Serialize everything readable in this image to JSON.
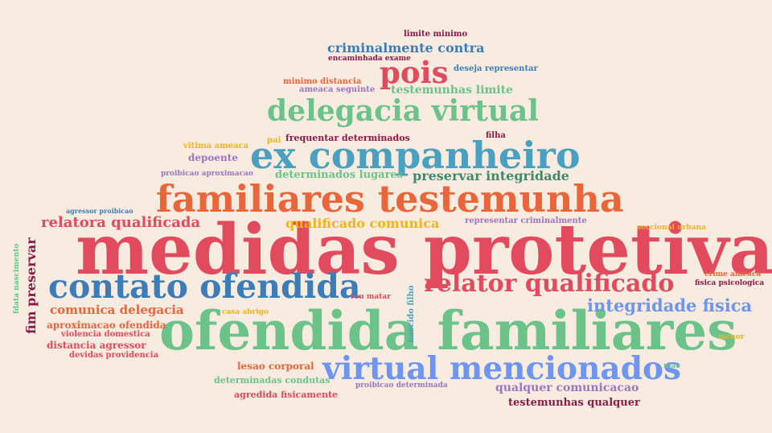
{
  "colors": {
    "background": "#f8ebdf",
    "red": "#e24a5e",
    "green": "#6cc38a",
    "orange": "#e9663a",
    "teal": "#4aa0c0",
    "blue": "#3c7db8",
    "periwinkle": "#6e95f2",
    "gold": "#f0b41e",
    "maroon": "#8a1a4a",
    "purple": "#9a76c0",
    "darkgreen": "#3f8a6c"
  },
  "words": [
    {
      "id": "w01",
      "text": "medidas protetiva",
      "color": "#e24a5e"
    },
    {
      "id": "w02",
      "text": "ofendida familiares",
      "color": "#6cc38a"
    },
    {
      "id": "w03",
      "text": "familiares testemunha",
      "color": "#e9663a"
    },
    {
      "id": "w04",
      "text": "ex companheiro",
      "color": "#4aa0c0"
    },
    {
      "id": "w05",
      "text": "contato ofendida",
      "color": "#3c7db8"
    },
    {
      "id": "w06",
      "text": "virtual mencionados",
      "color": "#6e95f2"
    },
    {
      "id": "w07",
      "text": "delegacia virtual",
      "color": "#6cc38a"
    },
    {
      "id": "w08",
      "text": "relator qualificado",
      "color": "#e24a5e"
    },
    {
      "id": "w09",
      "text": "pois",
      "color": "#e24a5e"
    },
    {
      "id": "w10",
      "text": "integridade fisica",
      "color": "#6e95f2"
    },
    {
      "id": "w11",
      "text": "relatora qualificada",
      "color": "#e24a5e"
    },
    {
      "id": "w12",
      "text": "criminalmente contra",
      "color": "#3c7db8"
    },
    {
      "id": "w13",
      "text": "preservar integridade",
      "color": "#3f8a6c"
    },
    {
      "id": "w14",
      "text": "qualificado comunica",
      "color": "#f0b41e"
    },
    {
      "id": "w15",
      "text": "comunica delegacia",
      "color": "#e9663a"
    },
    {
      "id": "w16",
      "text": "fim preservar",
      "color": "#8a1a4a"
    },
    {
      "id": "w17",
      "text": "testemunhas limite",
      "color": "#6cc38a"
    },
    {
      "id": "w18",
      "text": "determinados lugares",
      "color": "#6cc38a"
    },
    {
      "id": "w19",
      "text": "qualquer comunicacao",
      "color": "#9a76c0"
    },
    {
      "id": "w20",
      "text": "testemunhas qualquer",
      "color": "#8a1a4a"
    },
    {
      "id": "w21",
      "text": "frequentar determinados",
      "color": "#8a1a4a"
    },
    {
      "id": "w22",
      "text": "aproximacao ofendida",
      "color": "#e9663a"
    },
    {
      "id": "w23",
      "text": "distancia agressor",
      "color": "#e24a5e"
    },
    {
      "id": "w24",
      "text": "depoente",
      "color": "#9a76c0"
    },
    {
      "id": "w25",
      "text": "lesao corporal",
      "color": "#e9663a"
    },
    {
      "id": "w26",
      "text": "determinadas condutas",
      "color": "#6cc38a"
    },
    {
      "id": "w27",
      "text": "agredida fisicamente",
      "color": "#e24a5e"
    },
    {
      "id": "w28",
      "text": "encaminhada exame",
      "color": "#8a1a4a"
    },
    {
      "id": "w29",
      "text": "limite minimo",
      "color": "#8a1a4a"
    },
    {
      "id": "w30",
      "text": "minimo distancia",
      "color": "#e9663a"
    },
    {
      "id": "w31",
      "text": "ameaca seguinte",
      "color": "#9a76c0"
    },
    {
      "id": "w32",
      "text": "deseja representar",
      "color": "#3c7db8"
    },
    {
      "id": "w33",
      "text": "vitima ameaca",
      "color": "#f0b41e"
    },
    {
      "id": "w34",
      "text": "pai",
      "color": "#f0b41e"
    },
    {
      "id": "w35",
      "text": "filha",
      "color": "#8a1a4a"
    },
    {
      "id": "w36",
      "text": "proibicao aproximacao",
      "color": "#9a76c0"
    },
    {
      "id": "w37",
      "text": "agressor proibicao",
      "color": "#3c7db8"
    },
    {
      "id": "w38",
      "text": "representar criminalmente",
      "color": "#9a76c0"
    },
    {
      "id": "w39",
      "text": "seccional urbana",
      "color": "#f0b41e"
    },
    {
      "id": "w40",
      "text": "crime ameaca",
      "color": "#e9663a"
    },
    {
      "id": "w41",
      "text": "fisica psicologica",
      "color": "#8a1a4a"
    },
    {
      "id": "w42",
      "text": "menor",
      "color": "#f0b41e"
    },
    {
      "id": "w43",
      "text": "mae",
      "color": "#6cc38a"
    },
    {
      "id": "w44",
      "text": "violencia domestica",
      "color": "#e24a5e"
    },
    {
      "id": "w45",
      "text": "devidas providencia",
      "color": "#e24a5e"
    },
    {
      "id": "w46",
      "text": "casa abrigo",
      "color": "#f0b41e"
    },
    {
      "id": "w47",
      "text": "vou matar",
      "color": "#e24a5e"
    },
    {
      "id": "w48",
      "text": "proibicao determinada",
      "color": "#9a76c0"
    },
    {
      "id": "w49",
      "text": "fdata nascimento",
      "color": "#6cc38a"
    },
    {
      "id": "w50",
      "text": "nascido filho",
      "color": "#4aa0c0"
    }
  ]
}
